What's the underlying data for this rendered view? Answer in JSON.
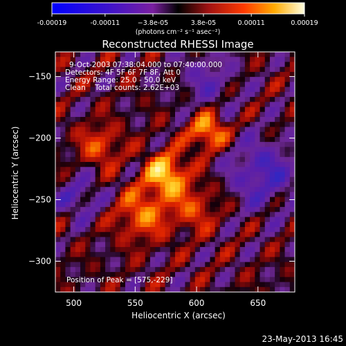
{
  "chart_data": {
    "type": "heatmap",
    "title": "Reconstructed RHESSI Image",
    "xlabel": "Heliocentric X (arcsec)",
    "ylabel": "Heliocentric Y (arcsec)",
    "xlim": [
      485,
      680
    ],
    "ylim": [
      -325,
      -130
    ],
    "x_ticks": [
      500,
      550,
      600,
      650
    ],
    "y_ticks": [
      -150,
      -200,
      -250,
      -300
    ],
    "colorbar": {
      "ticks": [
        "-0.00019",
        "-0.00011",
        "−3.8e-05",
        "3.8e-05",
        "0.00011",
        "0.00019"
      ],
      "tick_values": [
        -0.00019,
        -0.00011,
        -3.8e-05,
        3.8e-05,
        0.00011,
        0.00019
      ],
      "range": [
        -0.00019,
        0.00019
      ],
      "unit_label": "(photons cm⁻² s⁻¹ asec⁻²)"
    },
    "annotations": [
      "9-Oct-2003 07:38:04.000 to 07:40:00.000",
      "Detectors: 4F 5F 6F 7F 8F, Att 0",
      "Energy Range: 25.0 - 50.0 keV",
      "Clean    Total counts: 2.62E+03",
      "Position of Peak = [575,-229]"
    ],
    "peak_position": [
      575,
      -229
    ],
    "footer_date": "23-May-2013 16:45"
  }
}
